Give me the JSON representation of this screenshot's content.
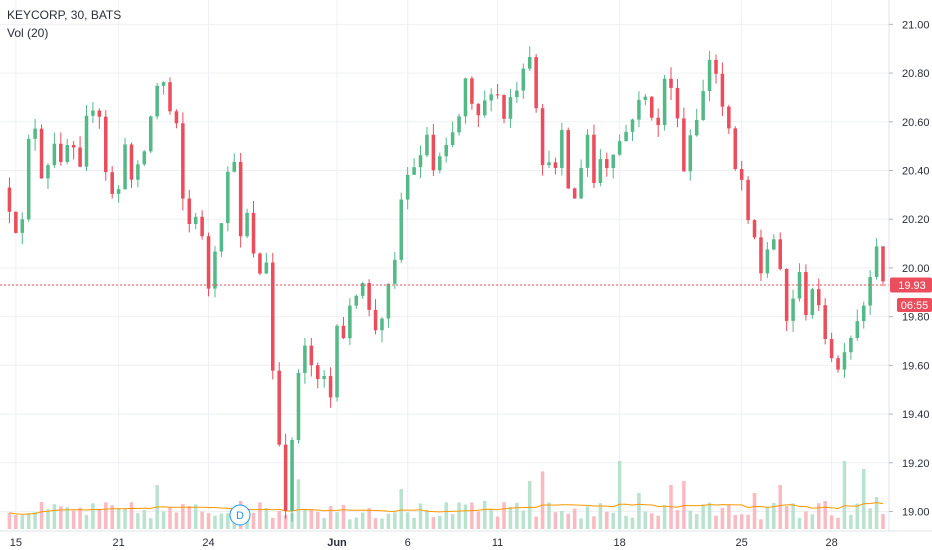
{
  "legend": {
    "symbol": "KEYCORP, 30, BATS",
    "indicator": "Vol (20)"
  },
  "colors": {
    "up": "#53b987",
    "down": "#eb4d5c",
    "volUp": "#a9dcc3",
    "volDown": "#f7a9b1",
    "ma": "#ff9800",
    "grid": "#eef0f3",
    "priceLine": "#eb4d5c",
    "timerBg": "#eb4d5c"
  },
  "price_badge": "19.93",
  "timer_badge": "06:55",
  "event_marker": "D",
  "chart_data": {
    "type": "candlestick",
    "ylim": [
      18.92,
      21.1
    ],
    "y_ticks": [
      "21.00",
      "20.80",
      "20.60",
      "20.40",
      "20.20",
      "20.00",
      "19.80",
      "19.60",
      "19.40",
      "19.20",
      "19.00"
    ],
    "y_tick_values": [
      21.0,
      20.8,
      20.6,
      20.4,
      20.2,
      20.0,
      19.8,
      19.6,
      19.4,
      19.2,
      19.0
    ],
    "x_ticks": [
      "15",
      "21",
      "24",
      "Jun",
      "6",
      "11",
      "18",
      "25",
      "28"
    ],
    "x_tick_bar_index": [
      2,
      18,
      32,
      52,
      63,
      77,
      96,
      115,
      129
    ],
    "bars_total": 137,
    "last_price": 19.93,
    "volume_ma_period": 20,
    "price_path": [
      [
        0,
        20.33
      ],
      [
        2,
        20.16
      ],
      [
        3,
        20.19
      ],
      [
        4,
        20.52
      ],
      [
        5,
        20.58
      ],
      [
        6,
        20.38
      ],
      [
        7,
        20.43
      ],
      [
        8,
        20.52
      ],
      [
        9,
        20.42
      ],
      [
        10,
        20.5
      ],
      [
        11,
        20.48
      ],
      [
        12,
        20.4
      ],
      [
        13,
        20.61
      ],
      [
        14,
        20.66
      ],
      [
        15,
        20.63
      ],
      [
        16,
        20.4
      ],
      [
        17,
        20.3
      ],
      [
        18,
        20.32
      ],
      [
        19,
        20.52
      ],
      [
        20,
        20.36
      ],
      [
        21,
        20.41
      ],
      [
        22,
        20.48
      ],
      [
        23,
        20.62
      ],
      [
        24,
        20.75
      ],
      [
        25,
        20.76
      ],
      [
        26,
        20.64
      ],
      [
        27,
        20.58
      ],
      [
        28,
        20.28
      ],
      [
        29,
        20.18
      ],
      [
        30,
        20.22
      ],
      [
        31,
        20.12
      ],
      [
        32,
        19.92
      ],
      [
        33,
        20.08
      ],
      [
        34,
        20.2
      ],
      [
        35,
        20.39
      ],
      [
        36,
        20.45
      ],
      [
        37,
        20.12
      ],
      [
        38,
        20.22
      ],
      [
        39,
        20.05
      ],
      [
        40,
        19.98
      ],
      [
        41,
        20.03
      ],
      [
        41.5,
        19.68
      ],
      [
        42,
        19.58
      ],
      [
        43,
        19.28
      ],
      [
        44,
        19.02
      ],
      [
        45,
        19.28
      ],
      [
        46,
        19.57
      ],
      [
        47,
        19.67
      ],
      [
        48,
        19.6
      ],
      [
        49,
        19.53
      ],
      [
        50,
        19.55
      ],
      [
        51,
        19.47
      ],
      [
        52,
        19.78
      ],
      [
        53,
        19.72
      ],
      [
        54,
        19.83
      ],
      [
        55,
        19.9
      ],
      [
        56,
        19.95
      ],
      [
        57,
        19.82
      ],
      [
        58,
        19.75
      ],
      [
        59,
        19.8
      ],
      [
        60,
        19.92
      ],
      [
        61,
        20.02
      ],
      [
        62,
        20.28
      ],
      [
        63,
        20.38
      ],
      [
        64,
        20.42
      ],
      [
        65,
        20.45
      ],
      [
        66,
        20.55
      ],
      [
        67,
        20.4
      ],
      [
        68,
        20.45
      ],
      [
        69,
        20.49
      ],
      [
        70,
        20.55
      ],
      [
        71,
        20.62
      ],
      [
        72,
        20.77
      ],
      [
        73,
        20.66
      ],
      [
        74,
        20.62
      ],
      [
        75,
        20.68
      ],
      [
        76,
        20.73
      ],
      [
        77,
        20.71
      ],
      [
        78,
        20.62
      ],
      [
        79,
        20.7
      ],
      [
        80,
        20.74
      ],
      [
        81,
        20.83
      ],
      [
        82,
        20.88
      ],
      [
        83,
        20.67
      ],
      [
        84,
        20.41
      ],
      [
        85,
        20.45
      ],
      [
        86,
        20.4
      ],
      [
        87,
        20.55
      ],
      [
        88,
        20.33
      ],
      [
        89,
        20.28
      ],
      [
        90,
        20.42
      ],
      [
        91,
        20.55
      ],
      [
        92,
        20.35
      ],
      [
        93,
        20.45
      ],
      [
        94,
        20.42
      ],
      [
        95,
        20.48
      ],
      [
        96,
        20.52
      ],
      [
        97,
        20.56
      ],
      [
        98,
        20.62
      ],
      [
        99,
        20.68
      ],
      [
        100,
        20.7
      ],
      [
        101,
        20.63
      ],
      [
        102,
        20.58
      ],
      [
        103,
        20.78
      ],
      [
        104,
        20.73
      ],
      [
        105,
        20.63
      ],
      [
        106,
        20.4
      ],
      [
        107,
        20.55
      ],
      [
        108,
        20.62
      ],
      [
        109,
        20.72
      ],
      [
        110,
        20.86
      ],
      [
        111,
        20.8
      ],
      [
        112,
        20.66
      ],
      [
        113,
        20.56
      ],
      [
        114,
        20.4
      ],
      [
        115,
        20.36
      ],
      [
        116,
        20.18
      ],
      [
        117,
        20.12
      ],
      [
        118,
        19.98
      ],
      [
        119,
        20.08
      ],
      [
        120,
        20.12
      ],
      [
        121,
        19.98
      ],
      [
        122,
        19.78
      ],
      [
        123,
        19.88
      ],
      [
        124,
        19.97
      ],
      [
        125,
        19.82
      ],
      [
        126,
        19.92
      ],
      [
        127,
        19.83
      ],
      [
        128,
        19.72
      ],
      [
        129,
        19.64
      ],
      [
        130,
        19.58
      ],
      [
        131,
        19.67
      ],
      [
        132,
        19.72
      ],
      [
        133,
        19.79
      ],
      [
        134,
        19.85
      ],
      [
        135,
        19.98
      ],
      [
        136,
        20.1
      ],
      [
        137,
        19.93
      ]
    ],
    "vol_spikes": [
      [
        24,
        0.55
      ],
      [
        37,
        0.35
      ],
      [
        46,
        0.62
      ],
      [
        48,
        0.25
      ],
      [
        62,
        0.5
      ],
      [
        75,
        0.35
      ],
      [
        82,
        0.6
      ],
      [
        84,
        0.72
      ],
      [
        96,
        0.85
      ],
      [
        99,
        0.45
      ],
      [
        104,
        0.55
      ],
      [
        106,
        0.6
      ],
      [
        117,
        0.45
      ],
      [
        121,
        0.55
      ],
      [
        128,
        0.35
      ],
      [
        131,
        0.85
      ],
      [
        134,
        0.75
      ],
      [
        136,
        0.4
      ]
    ]
  }
}
